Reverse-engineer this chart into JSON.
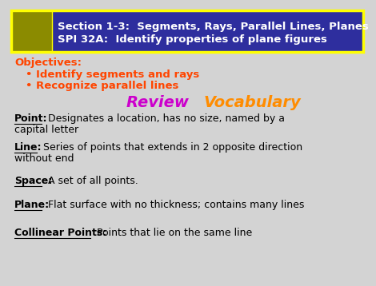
{
  "bg_color": "#d3d3d3",
  "header_bg": "#2e2e9e",
  "header_border": "#ffff00",
  "header_line1": "Section 1-3:  Segments, Rays, Parallel Lines, Planes",
  "header_line2": "SPI 32A:  Identify properties of plane figures",
  "header_text_color": "#ffffff",
  "objectives_label": "Objectives:",
  "objectives_color": "#ff4500",
  "bullet1": "Identify segments and rays",
  "bullet2": "Recognize parallel lines",
  "bullet_color": "#ff4500",
  "review_word1": "Review ",
  "review_word2": "Vocabulary",
  "review_color1": "#cc00cc",
  "review_color2": "#ff8c00",
  "body_color": "#000000",
  "definitions": [
    {
      "term": "Point:",
      "rest": "  Designates a location, has no size, named by a\ncapital letter"
    },
    {
      "term": "Line:",
      "rest": "  Series of points that extends in 2 opposite direction\nwithout end"
    },
    {
      "term": "Space:",
      "rest": "  A set of all points."
    },
    {
      "term": "Plane:",
      "rest": "  Flat surface with no thickness; contains many lines"
    },
    {
      "term": "Collinear Points:",
      "rest": "  Points that lie on the same line"
    }
  ],
  "def_y_positions": [
    132,
    168,
    210,
    240,
    275
  ],
  "icon_color": "#8B8B00"
}
